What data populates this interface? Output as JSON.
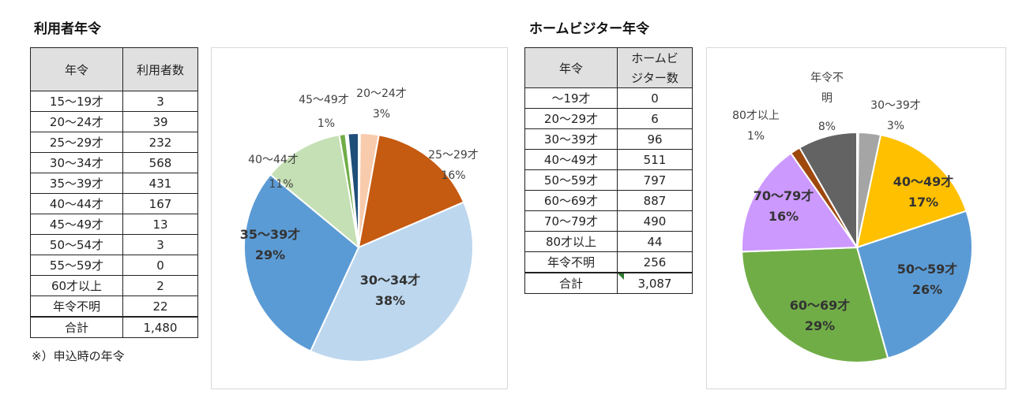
{
  "left": {
    "title": "利用者年令",
    "headers": [
      "年令",
      "利用者数"
    ],
    "rows": [
      [
        "15〜19才",
        "3"
      ],
      [
        "20〜24才",
        "39"
      ],
      [
        "25〜29才",
        "232"
      ],
      [
        "30〜34才",
        "568"
      ],
      [
        "35〜39才",
        "431"
      ],
      [
        "40〜44才",
        "167"
      ],
      [
        "45〜49才",
        "13"
      ],
      [
        "50〜54才",
        "3"
      ],
      [
        "55〜59才",
        "0"
      ],
      [
        "60才以上",
        "2"
      ],
      [
        "年令不明",
        "22"
      ]
    ],
    "total": [
      "合計",
      "1,480"
    ],
    "note": "※）申込時の年令"
  },
  "right": {
    "title": "ホームビジター年令",
    "headers": [
      "年令",
      "ホームビ",
      "ジター数"
    ],
    "rows": [
      [
        "〜19才",
        "0"
      ],
      [
        "20〜29才",
        "6"
      ],
      [
        "30〜39才",
        "96"
      ],
      [
        "40〜49才",
        "511"
      ],
      [
        "50〜59才",
        "797"
      ],
      [
        "60〜69才",
        "887"
      ],
      [
        "70〜79才",
        "490"
      ],
      [
        "80才以上",
        "44"
      ],
      [
        "年令不明",
        "256"
      ]
    ],
    "total": [
      "合計",
      "3,087"
    ]
  },
  "chart_data": [
    {
      "type": "pie",
      "slices": [
        {
          "name": "15〜19才",
          "value": 3,
          "color": "#4472c4",
          "label": "",
          "pct": ""
        },
        {
          "name": "20〜24才",
          "value": 39,
          "color": "#f8cbad",
          "label": "20〜24才",
          "pct": "3%"
        },
        {
          "name": "25〜29才",
          "value": 232,
          "color": "#c55a11",
          "label": "25〜29才",
          "pct": "16%"
        },
        {
          "name": "30〜34才",
          "value": 568,
          "color": "#bdd7ee",
          "label": "30〜34才",
          "pct": "38%"
        },
        {
          "name": "35〜39才",
          "value": 431,
          "color": "#5b9bd5",
          "label": "35〜39才",
          "pct": "29%"
        },
        {
          "name": "40〜44才",
          "value": 167,
          "color": "#c5e0b4",
          "label": "40〜44才",
          "pct": "11%"
        },
        {
          "name": "45〜49才",
          "value": 13,
          "color": "#70ad47",
          "label": "45〜49才",
          "pct": "1%"
        },
        {
          "name": "50〜54才",
          "value": 3,
          "color": "#2e75b6",
          "label": "",
          "pct": ""
        },
        {
          "name": "55〜59才",
          "value": 0,
          "color": "#a9d18e",
          "label": "",
          "pct": ""
        },
        {
          "name": "60才以上",
          "value": 2,
          "color": "#7f7f7f",
          "label": "",
          "pct": ""
        },
        {
          "name": "年令不明",
          "value": 22,
          "color": "#1f4e79",
          "label": "",
          "pct": ""
        }
      ]
    },
    {
      "type": "pie",
      "slices": [
        {
          "name": "〜19才",
          "value": 0,
          "color": "#ffffff",
          "label": "",
          "pct": ""
        },
        {
          "name": "20〜29才",
          "value": 6,
          "color": "#ed7d31",
          "label": "",
          "pct": ""
        },
        {
          "name": "30〜39才",
          "value": 96,
          "color": "#a5a5a5",
          "label": "30〜39才",
          "pct": "3%"
        },
        {
          "name": "40〜49才",
          "value": 511,
          "color": "#ffc000",
          "label": "40〜49才",
          "pct": "17%"
        },
        {
          "name": "50〜59才",
          "value": 797,
          "color": "#5b9bd5",
          "label": "50〜59才",
          "pct": "26%"
        },
        {
          "name": "60〜69才",
          "value": 887,
          "color": "#70ad47",
          "label": "60〜69才",
          "pct": "29%"
        },
        {
          "name": "70〜79才",
          "value": 490,
          "color": "#cc99ff",
          "label": "70〜79才",
          "pct": "16%"
        },
        {
          "name": "80才以上",
          "value": 44,
          "color": "#9e480e",
          "label": "80才以上",
          "pct": "1%"
        },
        {
          "name": "年令不明",
          "value": 256,
          "color": "#636363",
          "label": "年令不明",
          "pct": "8%"
        }
      ]
    }
  ]
}
